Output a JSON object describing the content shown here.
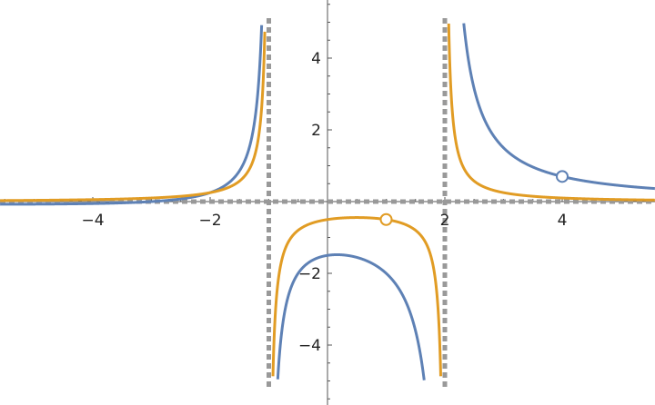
{
  "chart_data": {
    "type": "line",
    "title": "",
    "xlabel": "",
    "ylabel": "",
    "xlim": [
      -5.58,
      5.58
    ],
    "ylim": [
      -5,
      5
    ],
    "grid": false,
    "x_ticks": [
      {
        "value": -4,
        "label": "−4"
      },
      {
        "value": -2,
        "label": "−2"
      },
      {
        "value": 2,
        "label": "2"
      },
      {
        "value": 4,
        "label": "4"
      }
    ],
    "y_ticks": [
      {
        "value": 4,
        "label": "4"
      },
      {
        "value": 2,
        "label": "2"
      },
      {
        "value": -2,
        "label": "−2"
      },
      {
        "value": -4,
        "label": "−4"
      }
    ],
    "asymptotes": {
      "vertical": [
        -1,
        2
      ],
      "horizontal": [
        0
      ],
      "color": "#999999"
    },
    "series": [
      {
        "color": "#5E81B5",
        "function": "(x+3)/((x+1)(x-2))",
        "hole": {
          "x": 4,
          "y": 0.7
        }
      },
      {
        "color": "#E19C24",
        "function": "1/((x+1)(x-2))",
        "hole": {
          "x": 1,
          "y": -0.5
        }
      }
    ]
  }
}
